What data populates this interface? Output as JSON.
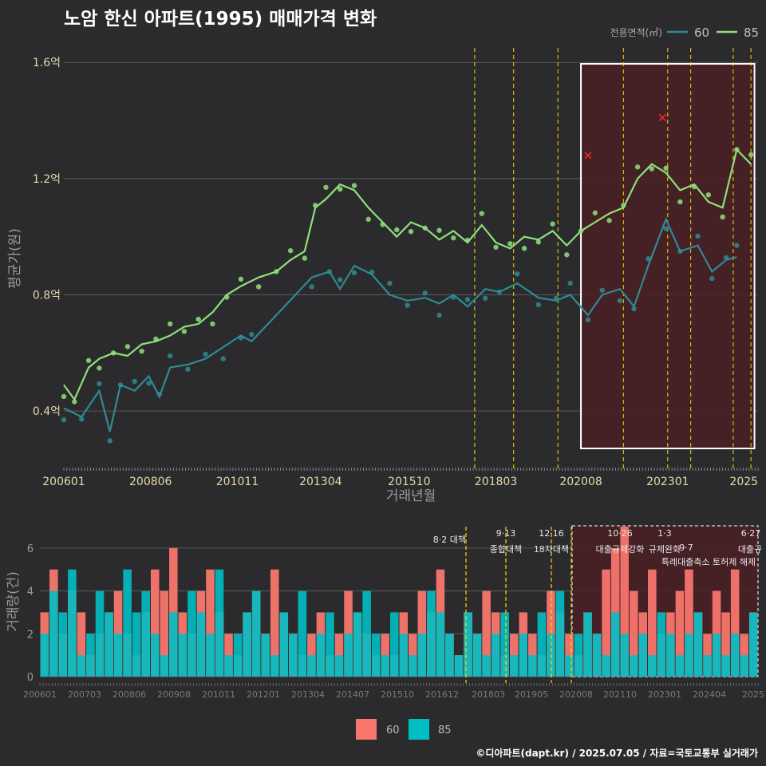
{
  "title": "노암 한신 아파트(1995) 매매가격 변화",
  "credit": "©디아파트(dapt.kr) / 2025.07.05 / 자료=국토교통부 실거래가",
  "colors": {
    "background": "#2b2b2d",
    "grid": "#5a5a5a",
    "area60_price": "#2f8a94",
    "area85_price": "#8fe07a",
    "area60_volume": "#f8766d",
    "area85_volume": "#00bfc4",
    "policy_line": "#ffd700",
    "highlight_fill": "#4a1f24",
    "highlight_border": "#ffffff",
    "marker_x": "#ff2a2a"
  },
  "chart_data": [
    {
      "type": "line",
      "ylabel": "평균가(원)",
      "xlabel": "거래년월",
      "ylim": [
        0.2,
        1.65
      ],
      "y_ticks": [
        0.4,
        0.8,
        1.2,
        1.6
      ],
      "y_tick_labels": [
        "0.4억",
        "0.8억",
        "1.2억",
        "1.6억"
      ],
      "x_tick_labels": [
        "200601",
        "200806",
        "201011",
        "201304",
        "201510",
        "201803",
        "202008",
        "202301",
        "2025"
      ],
      "legend_title": "전용면적(㎡)",
      "legend_position": "top-right",
      "series": [
        {
          "name": "60",
          "points": [
            [
              2006.0,
              0.41
            ],
            [
              2006.5,
              0.38
            ],
            [
              2007.0,
              0.47
            ],
            [
              2007.3,
              0.33
            ],
            [
              2007.6,
              0.49
            ],
            [
              2008.0,
              0.47
            ],
            [
              2008.4,
              0.52
            ],
            [
              2008.7,
              0.45
            ],
            [
              2009.0,
              0.55
            ],
            [
              2009.5,
              0.56
            ],
            [
              2010.0,
              0.58
            ],
            [
              2010.5,
              0.62
            ],
            [
              2011.0,
              0.66
            ],
            [
              2011.3,
              0.64
            ],
            [
              2013.0,
              0.86
            ],
            [
              2013.5,
              0.88
            ],
            [
              2013.8,
              0.82
            ],
            [
              2014.2,
              0.9
            ],
            [
              2014.7,
              0.87
            ],
            [
              2015.2,
              0.8
            ],
            [
              2015.7,
              0.78
            ],
            [
              2016.2,
              0.79
            ],
            [
              2016.6,
              0.77
            ],
            [
              2017.0,
              0.8
            ],
            [
              2017.4,
              0.76
            ],
            [
              2017.9,
              0.82
            ],
            [
              2018.3,
              0.81
            ],
            [
              2018.8,
              0.84
            ],
            [
              2019.4,
              0.79
            ],
            [
              2019.9,
              0.78
            ],
            [
              2020.3,
              0.8
            ],
            [
              2020.8,
              0.73
            ],
            [
              2021.2,
              0.8
            ],
            [
              2021.7,
              0.82
            ],
            [
              2022.1,
              0.76
            ],
            [
              2022.5,
              0.9
            ],
            [
              2023.0,
              1.06
            ],
            [
              2023.4,
              0.95
            ],
            [
              2023.9,
              0.97
            ],
            [
              2024.3,
              0.88
            ],
            [
              2024.7,
              0.92
            ],
            [
              2025.0,
              0.93
            ]
          ]
        },
        {
          "name": "85",
          "points": [
            [
              2006.0,
              0.49
            ],
            [
              2006.3,
              0.44
            ],
            [
              2006.7,
              0.55
            ],
            [
              2007.0,
              0.58
            ],
            [
              2007.4,
              0.6
            ],
            [
              2007.8,
              0.59
            ],
            [
              2008.2,
              0.63
            ],
            [
              2008.6,
              0.64
            ],
            [
              2009.0,
              0.66
            ],
            [
              2009.4,
              0.69
            ],
            [
              2009.8,
              0.7
            ],
            [
              2010.2,
              0.74
            ],
            [
              2010.6,
              0.8
            ],
            [
              2011.0,
              0.83
            ],
            [
              2011.5,
              0.86
            ],
            [
              2012.0,
              0.88
            ],
            [
              2012.4,
              0.92
            ],
            [
              2012.8,
              0.95
            ],
            [
              2013.1,
              1.1
            ],
            [
              2013.4,
              1.13
            ],
            [
              2013.8,
              1.18
            ],
            [
              2014.2,
              1.16
            ],
            [
              2014.6,
              1.1
            ],
            [
              2015.0,
              1.05
            ],
            [
              2015.4,
              1.0
            ],
            [
              2015.8,
              1.05
            ],
            [
              2016.2,
              1.03
            ],
            [
              2016.6,
              0.99
            ],
            [
              2017.0,
              1.02
            ],
            [
              2017.4,
              0.98
            ],
            [
              2017.8,
              1.04
            ],
            [
              2018.2,
              0.98
            ],
            [
              2018.6,
              0.96
            ],
            [
              2019.0,
              1.0
            ],
            [
              2019.4,
              0.99
            ],
            [
              2019.8,
              1.02
            ],
            [
              2020.2,
              0.97
            ],
            [
              2020.6,
              1.02
            ],
            [
              2021.0,
              1.05
            ],
            [
              2021.4,
              1.08
            ],
            [
              2021.8,
              1.1
            ],
            [
              2022.2,
              1.2
            ],
            [
              2022.6,
              1.25
            ],
            [
              2023.0,
              1.22
            ],
            [
              2023.4,
              1.16
            ],
            [
              2023.8,
              1.18
            ],
            [
              2024.2,
              1.12
            ],
            [
              2024.6,
              1.1
            ],
            [
              2025.0,
              1.3
            ],
            [
              2025.4,
              1.25
            ]
          ]
        }
      ],
      "marked_points": [
        [
          2020.8,
          1.28
        ],
        [
          2022.9,
          1.41
        ]
      ],
      "highlight_range": [
        2020.6,
        2025.5
      ]
    },
    {
      "type": "bar",
      "ylabel": "거래량(건)",
      "ylim": [
        0,
        7
      ],
      "y_ticks": [
        0,
        2,
        4,
        6
      ],
      "x_tick_labels": [
        "200601",
        "200703",
        "200806",
        "200908",
        "201011",
        "201201",
        "201304",
        "201407",
        "201510",
        "201612",
        "201803",
        "201905",
        "202008",
        "202110",
        "202301",
        "202404",
        "2025"
      ],
      "series": [
        {
          "name": "60",
          "values": [
            3,
            5,
            2,
            4,
            3,
            1,
            2,
            3,
            4,
            2,
            1,
            3,
            5,
            4,
            6,
            3,
            2,
            4,
            5,
            3,
            2,
            1,
            3,
            4,
            2,
            5,
            3,
            2,
            1,
            2,
            3,
            1,
            2,
            4,
            3,
            2,
            1,
            2,
            1,
            3,
            2,
            4,
            3,
            5,
            2,
            1,
            3,
            2,
            4,
            3,
            1,
            2,
            3,
            2,
            1,
            4,
            3,
            2,
            1,
            3,
            2,
            5,
            6,
            7,
            4,
            3,
            5,
            2,
            3,
            4,
            5,
            3,
            2,
            4,
            3,
            5,
            2,
            3
          ]
        },
        {
          "name": "85",
          "values": [
            2,
            4,
            3,
            5,
            1,
            2,
            4,
            3,
            2,
            5,
            3,
            4,
            2,
            1,
            3,
            2,
            4,
            3,
            2,
            5,
            1,
            2,
            3,
            4,
            2,
            1,
            3,
            2,
            4,
            1,
            2,
            3,
            1,
            2,
            3,
            4,
            2,
            1,
            3,
            2,
            1,
            2,
            4,
            3,
            2,
            1,
            3,
            2,
            1,
            2,
            3,
            1,
            2,
            1,
            3,
            2,
            4,
            1,
            2,
            3,
            2,
            1,
            3,
            2,
            1,
            2,
            1,
            3,
            2,
            1,
            2,
            3,
            1,
            2,
            1,
            2,
            1,
            3
          ]
        }
      ],
      "policy_labels": [
        "8·2 대책",
        "9·13",
        "종합대책",
        "12·16",
        "18차대책",
        "10·26",
        "대출규제강화",
        "1·3",
        "규제완화",
        "9·7",
        "특례대출축소 토허제 해제",
        "6·27",
        "대출규"
      ],
      "legend_position": "bottom"
    }
  ]
}
